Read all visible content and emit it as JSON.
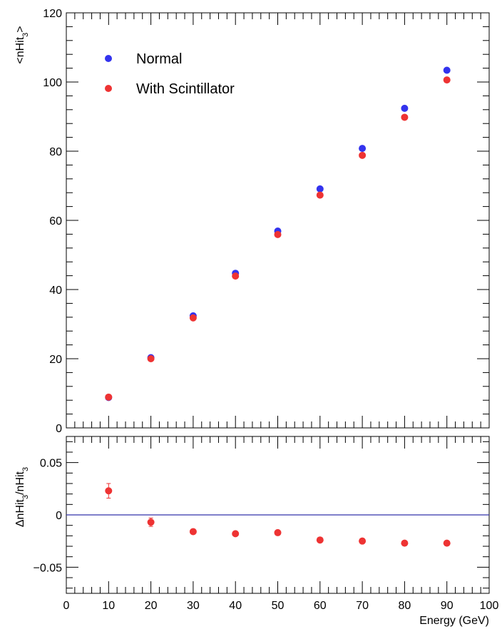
{
  "chart_data": [
    {
      "type": "scatter",
      "panel": "main",
      "ylabel": "<nHit3>",
      "ylabel_parts": {
        "base": "<nHit",
        "sub": "3",
        "end": ">"
      },
      "xlim": [
        0,
        100
      ],
      "ylim": [
        0,
        120
      ],
      "xticks": [
        0,
        10,
        20,
        30,
        40,
        50,
        60,
        70,
        80,
        90,
        100
      ],
      "yticks": [
        0,
        20,
        40,
        60,
        80,
        100,
        120
      ],
      "legend_position": "top-left",
      "series": [
        {
          "name": "Normal",
          "color": "#3333ee",
          "x": [
            10,
            20,
            30,
            40,
            50,
            60,
            70,
            80,
            90
          ],
          "y": [
            8.8,
            20.3,
            32.4,
            44.7,
            56.9,
            69.1,
            80.8,
            92.4,
            103.4
          ]
        },
        {
          "name": "With Scintillator",
          "color": "#ee3333",
          "x": [
            10,
            20,
            30,
            40,
            50,
            60,
            70,
            80,
            90
          ],
          "y": [
            8.9,
            20.0,
            31.8,
            43.9,
            55.9,
            67.3,
            78.8,
            89.8,
            100.6
          ]
        }
      ]
    },
    {
      "type": "scatter",
      "panel": "ratio",
      "ylabel": "ΔnHit3/nHit3",
      "ylabel_parts": {
        "a": "ΔnHit",
        "sub1": "3",
        "b": "/nHit",
        "sub2": "3"
      },
      "xlabel": "Energy (GeV)",
      "xlim": [
        0,
        100
      ],
      "ylim": [
        -0.075,
        0.075
      ],
      "xticks": [
        0,
        10,
        20,
        30,
        40,
        50,
        60,
        70,
        80,
        90,
        100
      ],
      "yticks": [
        -0.05,
        0,
        0.05
      ],
      "ytick_labels": [
        "−0.05",
        "0",
        "0.05"
      ],
      "reference_line": {
        "y": 0,
        "color": "#3333aa"
      },
      "series": [
        {
          "color": "#ee3333",
          "x": [
            10,
            20,
            30,
            40,
            50,
            60,
            70,
            80,
            90
          ],
          "y": [
            0.023,
            -0.007,
            -0.016,
            -0.018,
            -0.017,
            -0.024,
            -0.025,
            -0.027,
            -0.027
          ],
          "err": [
            0.007,
            0.004,
            0.002,
            0.002,
            0.0015,
            0.0015,
            0.0015,
            0.0015,
            0.0015
          ]
        }
      ]
    }
  ]
}
